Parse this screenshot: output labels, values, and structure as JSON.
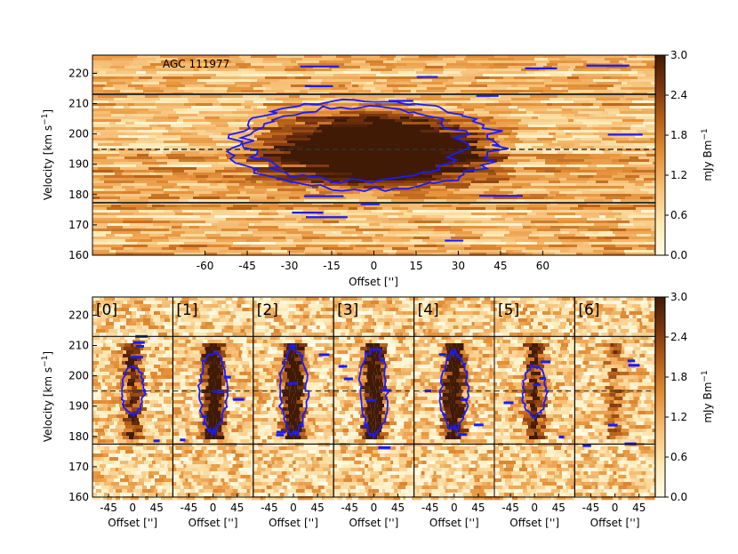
{
  "chart_data": [
    {
      "type": "heatmap",
      "title": "AGC 111977",
      "xlabel": "Offset ['']",
      "ylabel": "Velocity [km s$^{-1}$]",
      "xlim": [
        -100,
        100
      ],
      "ylim": [
        160,
        226
      ],
      "xticks": [
        -60,
        -45,
        -30,
        -15,
        0,
        15,
        30,
        45,
        60
      ],
      "yticks": [
        160,
        170,
        180,
        190,
        200,
        210,
        220
      ],
      "hlines": [
        {
          "y": 213,
          "style": "solid"
        },
        {
          "y": 195,
          "style": "dashed"
        },
        {
          "y": 177.5,
          "style": "solid"
        }
      ],
      "emission_region": {
        "x_range": [
          -50,
          52
        ],
        "v_range": [
          180,
          211
        ],
        "peak": 3.0
      },
      "contour_color": "#1a1aff"
    },
    {
      "type": "heatmap",
      "panel_labels": [
        "[0]",
        "[1]",
        "[2]",
        "[3]",
        "[4]",
        "[5]",
        "[6]"
      ],
      "xlabel": "Offset ['']",
      "ylabel": "Velocity [km s$^{-1}$]",
      "xlim": [
        -75,
        75
      ],
      "ylim": [
        160,
        226
      ],
      "xticks": [
        -45,
        0,
        45
      ],
      "yticks": [
        160,
        170,
        180,
        190,
        200,
        210,
        220
      ],
      "hlines": [
        {
          "y": 213,
          "style": "solid"
        },
        {
          "y": 195,
          "style": "dashed"
        },
        {
          "y": 177.5,
          "style": "solid"
        }
      ],
      "panel_peak_strength": [
        0.55,
        0.95,
        1.0,
        1.0,
        0.9,
        0.6,
        0.3
      ]
    }
  ],
  "colorbar": {
    "label": "mJy Bm$^{-1}$",
    "ticks": [
      "0.0",
      "0.6",
      "1.2",
      "1.8",
      "2.4",
      "3.0"
    ],
    "range": [
      0.0,
      3.0
    ],
    "colormap": [
      "#fffbe8",
      "#fde9b4",
      "#f7c27a",
      "#e6923a",
      "#b8621a",
      "#7a3510",
      "#401a05"
    ]
  }
}
